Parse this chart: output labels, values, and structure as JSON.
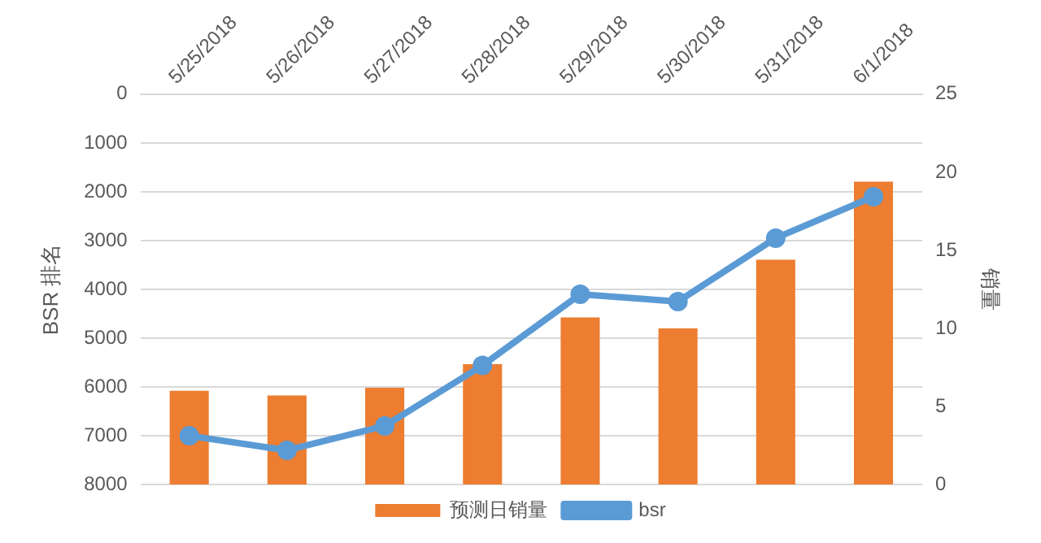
{
  "chart_data": {
    "type": "bar",
    "categories": [
      "5/25/2018",
      "5/26/2018",
      "5/27/2018",
      "5/28/2018",
      "5/29/2018",
      "5/30/2018",
      "5/31/2018",
      "6/1/2018"
    ],
    "series": [
      {
        "name": "预测日销量",
        "axis": "y2",
        "color": "#ed7d31",
        "values": [
          6.0,
          5.7,
          6.2,
          7.7,
          10.7,
          10.0,
          14.4,
          19.4
        ]
      },
      {
        "name": "bsr",
        "type": "line",
        "color": "#5b9bd5",
        "values": [
          7000,
          7300,
          6800,
          5560,
          4100,
          4250,
          2950,
          2100
        ]
      }
    ],
    "ylabel": "BSR 排名",
    "y2label": "销量",
    "ylim": [
      8000,
      0
    ],
    "yticks": [
      0,
      1000,
      2000,
      3000,
      4000,
      5000,
      6000,
      7000,
      8000
    ],
    "y2lim": [
      0,
      25
    ],
    "y2ticks": [
      0,
      5,
      10,
      15,
      20,
      25
    ],
    "grid": "y",
    "legend": "bottom",
    "marker": "circle"
  }
}
